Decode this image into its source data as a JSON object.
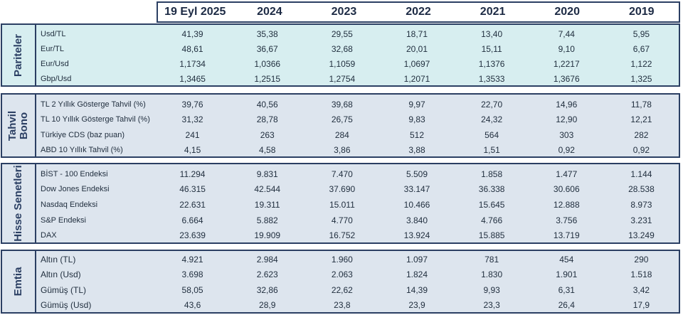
{
  "header": {
    "columns": [
      "19 Eyl 2025",
      "2024",
      "2023",
      "2022",
      "2021",
      "2020",
      "2019"
    ]
  },
  "sections": {
    "pariteler": {
      "title": "Pariteler",
      "rows": [
        {
          "label": "Usd/TL",
          "values": [
            "41,39",
            "35,38",
            "29,55",
            "18,71",
            "13,40",
            "7,44",
            "5,95"
          ]
        },
        {
          "label": "Eur/TL",
          "values": [
            "48,61",
            "36,67",
            "32,68",
            "20,01",
            "15,11",
            "9,10",
            "6,67"
          ]
        },
        {
          "label": "Eur/Usd",
          "values": [
            "1,1734",
            "1,0366",
            "1,1059",
            "1,0697",
            "1,1376",
            "1,2217",
            "1,122"
          ]
        },
        {
          "label": "Gbp/Usd",
          "values": [
            "1,3465",
            "1,2515",
            "1,2754",
            "1,2071",
            "1,3533",
            "1,3676",
            "1,325"
          ]
        }
      ]
    },
    "tahvil": {
      "title_line1": "Tahvil",
      "title_line2": "Bono",
      "rows": [
        {
          "label": "TL 2 Yıllık Gösterge Tahvil (%)",
          "values": [
            "39,76",
            "40,56",
            "39,68",
            "9,97",
            "22,70",
            "14,96",
            "11,78"
          ]
        },
        {
          "label": "TL 10 Yıllık Gösterge Tahvil (%)",
          "values": [
            "31,32",
            "28,78",
            "26,75",
            "9,83",
            "24,32",
            "12,90",
            "12,21"
          ]
        },
        {
          "label": "Türkiye CDS (baz puan)",
          "values": [
            "241",
            "263",
            "284",
            "512",
            "564",
            "303",
            "282"
          ]
        },
        {
          "label": "ABD 10 Yıllık Tahvil (%)",
          "values": [
            "4,15",
            "4,58",
            "3,86",
            "3,88",
            "1,51",
            "0,92",
            "0,92"
          ]
        }
      ]
    },
    "hisse": {
      "title": "Hisse Senetleri",
      "rows": [
        {
          "label": "BİST - 100 Endeksi",
          "values": [
            "11.294",
            "9.831",
            "7.470",
            "5.509",
            "1.858",
            "1.477",
            "1.144"
          ]
        },
        {
          "label": "Dow Jones Endeksi",
          "values": [
            "46.315",
            "42.544",
            "37.690",
            "33.147",
            "36.338",
            "30.606",
            "28.538"
          ]
        },
        {
          "label": "Nasdaq Endeksi",
          "values": [
            "22.631",
            "19.311",
            "15.011",
            "10.466",
            "15.645",
            "12.888",
            "8.973"
          ]
        },
        {
          "label": "S&P Endeksi",
          "values": [
            "6.664",
            "5.882",
            "4.770",
            "3.840",
            "4.766",
            "3.756",
            "3.231"
          ]
        },
        {
          "label": "DAX",
          "values": [
            "23.639",
            "19.909",
            "16.752",
            "13.924",
            "15.885",
            "13.719",
            "13.249"
          ]
        }
      ]
    },
    "emtia": {
      "title": "Emtia",
      "rows": [
        {
          "label": "Altın (TL)",
          "values": [
            "4.921",
            "2.984",
            "1.960",
            "1.097",
            "781",
            "454",
            "290"
          ]
        },
        {
          "label": "Altın (Usd)",
          "values": [
            "3.698",
            "2.623",
            "2.063",
            "1.824",
            "1.830",
            "1.901",
            "1.518"
          ]
        },
        {
          "label": "Gümüş (TL)",
          "values": [
            "58,05",
            "32,86",
            "22,62",
            "14,39",
            "9,93",
            "6,31",
            "3,42"
          ]
        },
        {
          "label": "Gümüş (Usd)",
          "values": [
            "43,6",
            "28,9",
            "23,8",
            "23,9",
            "23,3",
            "26,4",
            "17,9"
          ]
        }
      ]
    }
  }
}
